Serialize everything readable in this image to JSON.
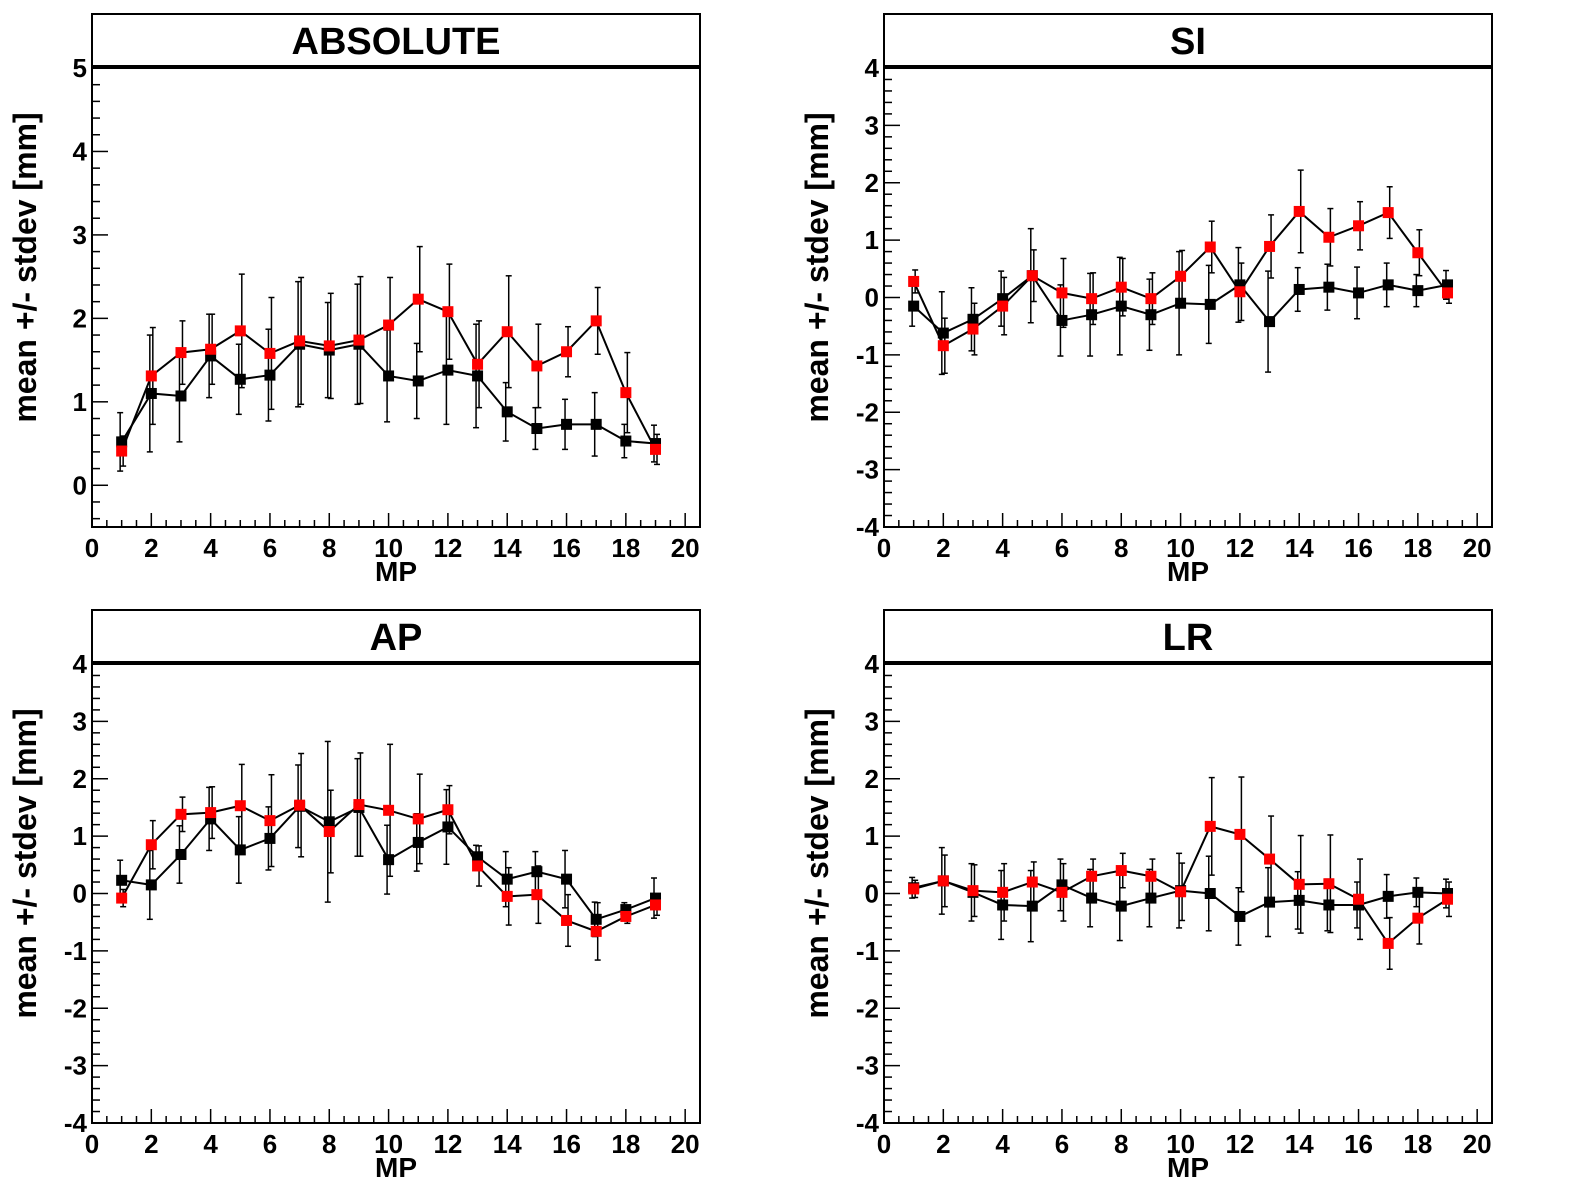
{
  "colors": {
    "series_black": "#000000",
    "series_red": "#ff0000"
  },
  "chart_data": [
    {
      "type": "line",
      "title": "ABSOLUTE",
      "xlabel": "MP",
      "ylabel": "mean +/- stdev [mm]",
      "xlim": [
        0,
        20.5
      ],
      "ylim": [
        -0.5,
        5
      ],
      "xticks": [
        0,
        2,
        4,
        6,
        8,
        10,
        12,
        14,
        16,
        18,
        20
      ],
      "yticks": [
        0,
        1,
        2,
        3,
        4,
        5
      ],
      "grid": false,
      "x": [
        1,
        2,
        3,
        4,
        5,
        6,
        7,
        8,
        9,
        10,
        11,
        12,
        13,
        14,
        15,
        16,
        17,
        18,
        19
      ],
      "series": [
        {
          "color": "#000000",
          "marker": "square",
          "values": [
            0.52,
            1.1,
            1.07,
            1.55,
            1.27,
            1.32,
            1.69,
            1.62,
            1.69,
            1.31,
            1.25,
            1.38,
            1.31,
            0.88,
            0.68,
            0.73,
            0.73,
            0.53,
            0.5
          ],
          "errors": [
            0.35,
            0.7,
            0.55,
            0.5,
            0.42,
            0.55,
            0.75,
            0.57,
            0.72,
            0.55,
            0.45,
            0.65,
            0.62,
            0.35,
            0.25,
            0.3,
            0.38,
            0.2,
            0.22
          ]
        },
        {
          "color": "#ff0000",
          "marker": "square",
          "values": [
            0.41,
            1.31,
            1.59,
            1.63,
            1.85,
            1.58,
            1.73,
            1.67,
            1.74,
            1.92,
            2.23,
            2.08,
            1.45,
            1.84,
            1.43,
            1.6,
            1.97,
            1.11,
            0.43
          ],
          "errors": [
            0.18,
            0.58,
            0.38,
            0.42,
            0.68,
            0.67,
            0.76,
            0.63,
            0.76,
            0.57,
            0.63,
            0.57,
            0.52,
            0.67,
            0.5,
            0.3,
            0.4,
            0.48,
            0.18
          ]
        }
      ]
    },
    {
      "type": "line",
      "title": "SI",
      "xlabel": "MP",
      "ylabel": "mean +/- stdev [mm]",
      "xlim": [
        0,
        20.5
      ],
      "ylim": [
        -4,
        4
      ],
      "xticks": [
        0,
        2,
        4,
        6,
        8,
        10,
        12,
        14,
        16,
        18,
        20
      ],
      "yticks": [
        -4,
        -3,
        -2,
        -1,
        0,
        1,
        2,
        3,
        4
      ],
      "grid": false,
      "x": [
        1,
        2,
        3,
        4,
        5,
        6,
        7,
        8,
        9,
        10,
        11,
        12,
        13,
        14,
        15,
        16,
        17,
        18,
        19
      ],
      "series": [
        {
          "color": "#000000",
          "marker": "square",
          "values": [
            -0.15,
            -0.62,
            -0.38,
            -0.02,
            0.38,
            -0.4,
            -0.3,
            -0.15,
            -0.3,
            -0.1,
            -0.12,
            0.22,
            -0.42,
            0.14,
            0.18,
            0.08,
            0.22,
            0.12,
            0.22
          ],
          "errors": [
            0.35,
            0.72,
            0.55,
            0.48,
            0.82,
            0.62,
            0.72,
            0.85,
            0.62,
            0.9,
            0.68,
            0.65,
            0.88,
            0.38,
            0.4,
            0.45,
            0.38,
            0.28,
            0.25
          ]
        },
        {
          "color": "#ff0000",
          "marker": "square",
          "values": [
            0.28,
            -0.84,
            -0.55,
            -0.15,
            0.38,
            0.08,
            -0.02,
            0.18,
            -0.02,
            0.37,
            0.88,
            0.1,
            0.89,
            1.5,
            1.05,
            1.25,
            1.48,
            0.78,
            0.08
          ],
          "errors": [
            0.2,
            0.48,
            0.45,
            0.5,
            0.45,
            0.6,
            0.45,
            0.5,
            0.45,
            0.45,
            0.45,
            0.5,
            0.55,
            0.72,
            0.5,
            0.42,
            0.45,
            0.4,
            0.18
          ]
        }
      ]
    },
    {
      "type": "line",
      "title": "AP",
      "xlabel": "MP",
      "ylabel": "mean +/- stdev [mm]",
      "xlim": [
        0,
        20.5
      ],
      "ylim": [
        -4,
        4
      ],
      "xticks": [
        0,
        2,
        4,
        6,
        8,
        10,
        12,
        14,
        16,
        18,
        20
      ],
      "yticks": [
        -4,
        -3,
        -2,
        -1,
        0,
        1,
        2,
        3,
        4
      ],
      "grid": false,
      "x": [
        1,
        2,
        3,
        4,
        5,
        6,
        7,
        8,
        9,
        10,
        11,
        12,
        13,
        14,
        15,
        16,
        17,
        18,
        19
      ],
      "series": [
        {
          "color": "#000000",
          "marker": "square",
          "values": [
            0.23,
            0.15,
            0.68,
            1.3,
            0.76,
            0.96,
            1.52,
            1.25,
            1.5,
            0.59,
            0.89,
            1.16,
            0.64,
            0.25,
            0.38,
            0.25,
            -0.45,
            -0.28,
            -0.08
          ],
          "errors": [
            0.35,
            0.6,
            0.5,
            0.55,
            0.58,
            0.55,
            0.72,
            1.4,
            0.85,
            0.6,
            0.5,
            0.65,
            0.2,
            0.48,
            0.35,
            0.5,
            0.3,
            0.12,
            0.35
          ]
        },
        {
          "color": "#ff0000",
          "marker": "square",
          "values": [
            -0.08,
            0.85,
            1.38,
            1.41,
            1.53,
            1.27,
            1.54,
            1.08,
            1.55,
            1.45,
            1.3,
            1.46,
            0.48,
            -0.05,
            -0.02,
            -0.47,
            -0.66,
            -0.4,
            -0.2
          ],
          "errors": [
            0.15,
            0.42,
            0.3,
            0.45,
            0.72,
            0.8,
            0.9,
            0.72,
            0.9,
            1.15,
            0.78,
            0.42,
            0.35,
            0.5,
            0.5,
            0.45,
            0.5,
            0.12,
            0.18
          ]
        }
      ]
    },
    {
      "type": "line",
      "title": "LR",
      "xlabel": "MP",
      "ylabel": "mean +/- stdev [mm]",
      "xlim": [
        0,
        20.5
      ],
      "ylim": [
        -4,
        4
      ],
      "xticks": [
        0,
        2,
        4,
        6,
        8,
        10,
        12,
        14,
        16,
        18,
        20
      ],
      "yticks": [
        -4,
        -3,
        -2,
        -1,
        0,
        1,
        2,
        3,
        4
      ],
      "grid": false,
      "x": [
        1,
        2,
        3,
        4,
        5,
        6,
        7,
        8,
        9,
        10,
        11,
        12,
        13,
        14,
        15,
        16,
        17,
        18,
        19
      ],
      "series": [
        {
          "color": "#000000",
          "marker": "square",
          "values": [
            0.1,
            0.22,
            0.02,
            -0.2,
            -0.22,
            0.15,
            -0.08,
            -0.22,
            -0.08,
            0.05,
            0.0,
            -0.4,
            -0.15,
            -0.12,
            -0.2,
            -0.2,
            -0.05,
            0.02,
            0.0
          ],
          "errors": [
            0.18,
            0.58,
            0.5,
            0.6,
            0.62,
            0.45,
            0.5,
            0.6,
            0.5,
            0.65,
            0.65,
            0.5,
            0.6,
            0.5,
            0.45,
            0.4,
            0.38,
            0.25,
            0.25
          ]
        },
        {
          "color": "#ff0000",
          "marker": "square",
          "values": [
            0.08,
            0.22,
            0.05,
            0.02,
            0.2,
            0.02,
            0.3,
            0.4,
            0.3,
            0.03,
            1.17,
            1.03,
            0.6,
            0.16,
            0.17,
            -0.1,
            -0.87,
            -0.43,
            -0.1
          ],
          "errors": [
            0.15,
            0.45,
            0.45,
            0.5,
            0.35,
            0.5,
            0.3,
            0.3,
            0.3,
            0.5,
            0.85,
            1.0,
            0.75,
            0.85,
            0.85,
            0.7,
            0.45,
            0.45,
            0.3
          ]
        }
      ]
    }
  ]
}
